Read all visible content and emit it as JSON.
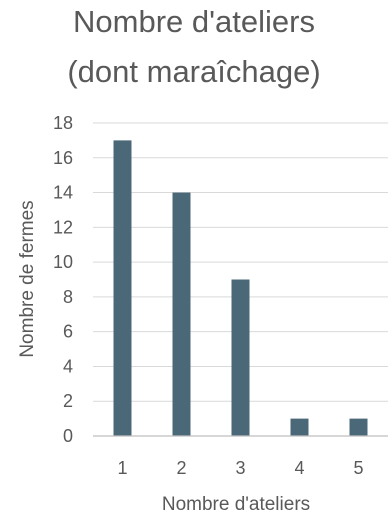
{
  "chart_data": {
    "type": "bar",
    "title_lines": [
      "Nombre d'ateliers",
      "(dont maraîchage)"
    ],
    "categories": [
      "1",
      "2",
      "3",
      "4",
      "5"
    ],
    "values": [
      17,
      14,
      9,
      1,
      1
    ],
    "xlabel": "Nombre d'ateliers",
    "ylabel": "Nombre de fermes",
    "ylim": [
      0,
      18
    ],
    "yticks": [
      0,
      2,
      4,
      6,
      8,
      10,
      12,
      14,
      16,
      18
    ],
    "grid": true,
    "legend": "none",
    "bar_color": "#4a6877"
  }
}
